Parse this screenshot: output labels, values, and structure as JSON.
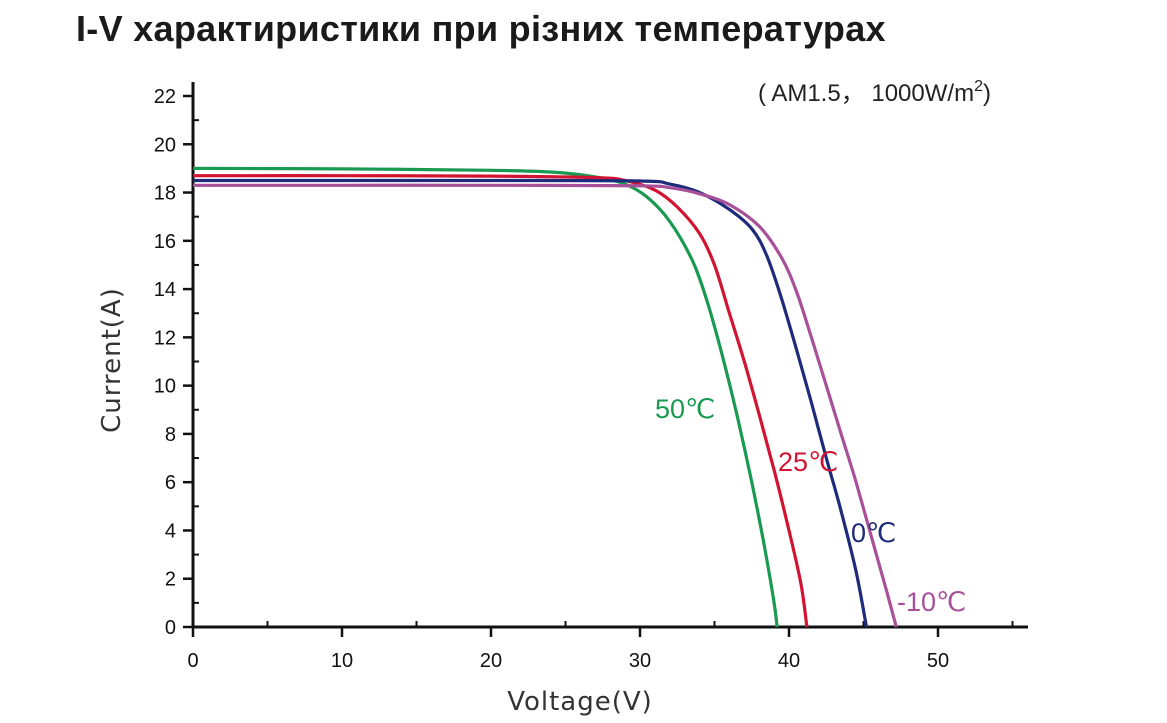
{
  "title": {
    "prefix": "I-V",
    "text": "характиристики при різних температурах"
  },
  "chart_data": {
    "type": "line",
    "title": "I-V характиристики при різних температурах",
    "condition": {
      "main": "( AM1.5， 1000W/m",
      "sup": "2",
      "close": ")"
    },
    "xlabel": "Voltage(V)",
    "ylabel": "Current(A)",
    "xlim": [
      0,
      56
    ],
    "ylim": [
      0,
      22
    ],
    "x_ticks": [
      0,
      10,
      20,
      30,
      40,
      50
    ],
    "y_ticks": [
      0,
      2,
      4,
      6,
      8,
      10,
      12,
      14,
      16,
      18,
      20,
      22
    ],
    "series": [
      {
        "name": "50℃",
        "color": "#1a9a50",
        "points": [
          [
            0,
            19.0
          ],
          [
            10,
            18.98
          ],
          [
            20,
            18.92
          ],
          [
            24,
            18.85
          ],
          [
            27,
            18.65
          ],
          [
            29,
            18.35
          ],
          [
            30.5,
            17.8
          ],
          [
            32,
            16.8
          ],
          [
            33.5,
            15.2
          ],
          [
            34.5,
            13.5
          ],
          [
            35.5,
            11.3
          ],
          [
            36.5,
            8.8
          ],
          [
            37.5,
            6.0
          ],
          [
            38.3,
            3.5
          ],
          [
            39.0,
            1.0
          ],
          [
            39.2,
            0
          ]
        ]
      },
      {
        "name": "25℃",
        "color": "#d21432",
        "points": [
          [
            0,
            18.7
          ],
          [
            10,
            18.7
          ],
          [
            20,
            18.68
          ],
          [
            27,
            18.62
          ],
          [
            29,
            18.5
          ],
          [
            31,
            18.1
          ],
          [
            32.5,
            17.4
          ],
          [
            34,
            16.3
          ],
          [
            35,
            15.0
          ],
          [
            36,
            13.0
          ],
          [
            37,
            11.0
          ],
          [
            38,
            8.8
          ],
          [
            39,
            6.5
          ],
          [
            40,
            4.0
          ],
          [
            40.8,
            1.8
          ],
          [
            41.2,
            0
          ]
        ]
      },
      {
        "name": "0℃",
        "color": "#1e2a7a",
        "points": [
          [
            0,
            18.5
          ],
          [
            10,
            18.5
          ],
          [
            20,
            18.5
          ],
          [
            30,
            18.48
          ],
          [
            32,
            18.35
          ],
          [
            34,
            18.0
          ],
          [
            36,
            17.3
          ],
          [
            37.5,
            16.5
          ],
          [
            38.5,
            15.4
          ],
          [
            39.5,
            13.6
          ],
          [
            40.5,
            11.5
          ],
          [
            41.5,
            9.3
          ],
          [
            42.5,
            7.0
          ],
          [
            43.5,
            4.8
          ],
          [
            44.5,
            2.3
          ],
          [
            45.2,
            0
          ]
        ]
      },
      {
        "name": "-10℃",
        "color": "#a8509a",
        "points": [
          [
            0,
            18.3
          ],
          [
            10,
            18.3
          ],
          [
            20,
            18.3
          ],
          [
            30,
            18.28
          ],
          [
            32,
            18.2
          ],
          [
            34,
            17.95
          ],
          [
            36,
            17.5
          ],
          [
            38,
            16.6
          ],
          [
            39.5,
            15.3
          ],
          [
            40.5,
            13.9
          ],
          [
            41.5,
            12.0
          ],
          [
            42.5,
            10.0
          ],
          [
            43.5,
            8.0
          ],
          [
            44.5,
            6.0
          ],
          [
            45.5,
            3.8
          ],
          [
            46.5,
            1.6
          ],
          [
            47.2,
            0
          ]
        ]
      }
    ],
    "grid": false,
    "legend": "inline labels"
  }
}
